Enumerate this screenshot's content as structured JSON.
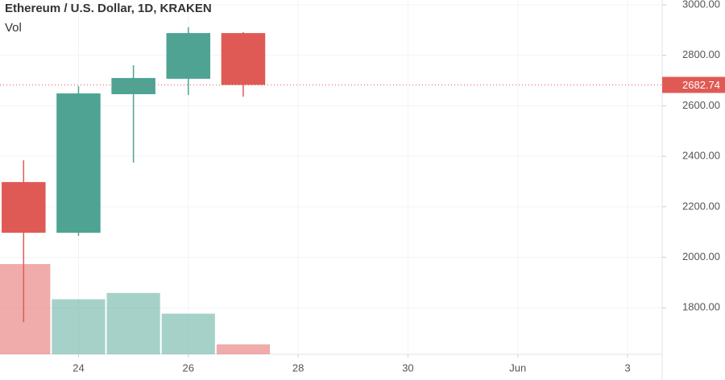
{
  "chart_data": {
    "type": "candlestick",
    "title": "Ethereum / U.S. Dollar, 1D, KRAKEN",
    "volume_label": "Vol",
    "x": [
      23,
      24,
      25,
      26,
      27
    ],
    "open": [
      2298,
      2097,
      2646,
      2707,
      2888
    ],
    "high": [
      2384,
      2678,
      2761,
      2911,
      2892
    ],
    "low": [
      1743,
      2085,
      2375,
      2643,
      2636
    ],
    "close": [
      2097,
      2649,
      2710,
      2888,
      2682.74
    ],
    "volume": [
      100,
      61,
      68,
      45,
      11
    ],
    "up_color": "#4ea393",
    "down_color": "#e05a55",
    "xlim": [
      22.57,
      34.63
    ],
    "xticks": [
      24,
      26,
      28,
      30,
      {
        "value": 32,
        "label": "Jun"
      },
      {
        "value": 34,
        "label": "3"
      }
    ],
    "ylim": [
      1616,
      3019
    ],
    "yticks": [
      {
        "value": 1800,
        "label": "1800.00"
      },
      {
        "value": 2000,
        "label": "2000.00"
      },
      {
        "value": 2200,
        "label": "2200.00"
      },
      {
        "value": 2400,
        "label": "2400.00"
      },
      {
        "value": 2600,
        "label": "2600.00"
      },
      {
        "value": 2800,
        "label": "2800.00"
      },
      {
        "value": 3000,
        "label": "3000.00"
      }
    ],
    "last_price": 2682.74,
    "grid": true
  }
}
